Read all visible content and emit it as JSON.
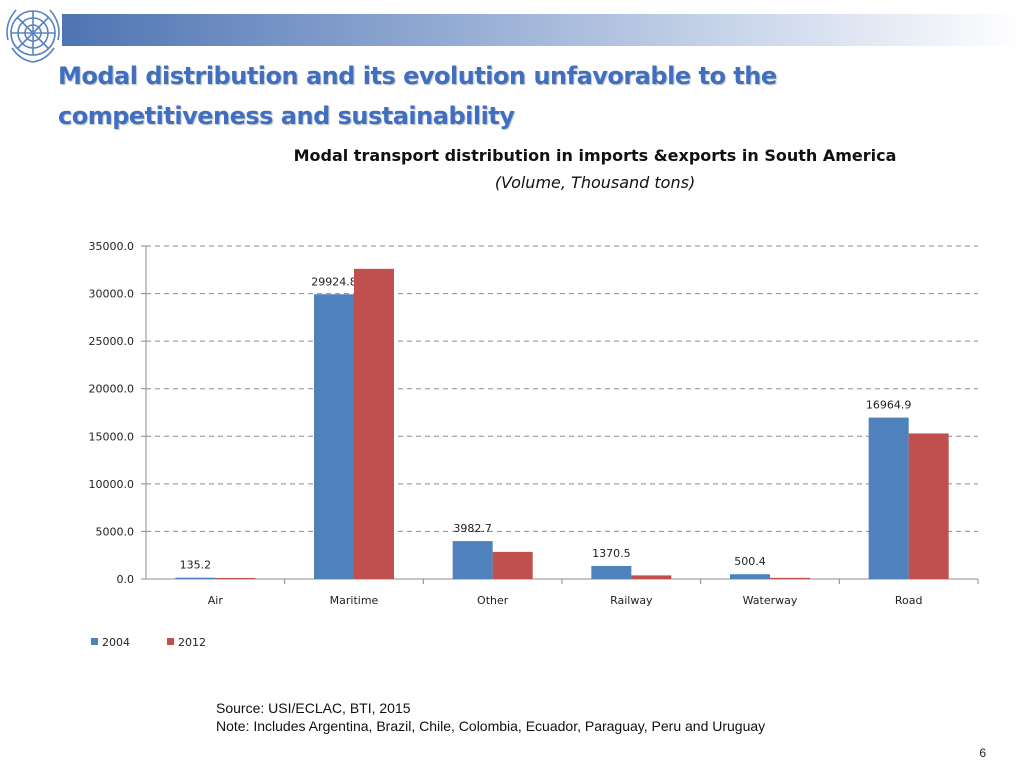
{
  "slide": {
    "title": "Modal distribution and its evolution unfavorable to the competitiveness and sustainability",
    "source_line": "Source: USI/ECLAC, BTI, 2015",
    "note_line": "Note: Includes Argentina, Brazil, Chile, Colombia, Ecuador, Paraguay, Peru and Uruguay",
    "page_number": "6"
  },
  "chart_data": {
    "type": "bar",
    "title": "Modal transport distribution in imports &exports in South America",
    "subtitle": "(Volume, Thousand tons)",
    "categories": [
      "Air",
      "Maritime",
      "Other",
      "Railway",
      "Waterway",
      "Road"
    ],
    "series": [
      {
        "name": "2004",
        "color": "#4f81bd",
        "values": [
          135.2,
          29924.8,
          3982.7,
          1370.5,
          500.4,
          16964.9
        ],
        "labels": [
          "135.2",
          "29924.8",
          "3982.7",
          "1370.5",
          "500.4",
          "16964.9"
        ]
      },
      {
        "name": "2012",
        "color": "#c0504d",
        "values": [
          100,
          32600,
          2850,
          380,
          120,
          15300
        ]
      }
    ],
    "ylim": [
      0,
      35000
    ],
    "yticks": [
      0,
      5000,
      10000,
      15000,
      20000,
      25000,
      30000,
      35000
    ],
    "ytick_labels": [
      "0.0",
      "5000.0",
      "10000.0",
      "15000.0",
      "20000.0",
      "25000.0",
      "30000.0",
      "35000.0"
    ],
    "grid": true,
    "legend": "bottom-left"
  }
}
